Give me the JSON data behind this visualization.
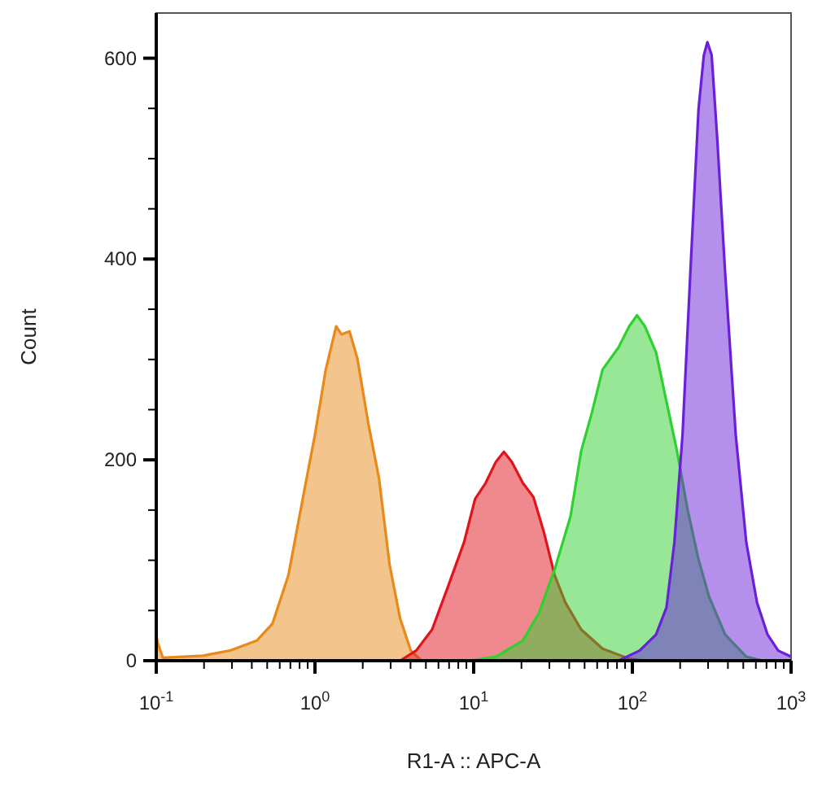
{
  "chart_data": {
    "type": "area",
    "xlabel": "R1-A :: APC-A",
    "ylabel": "Count",
    "log": "x",
    "grid": false,
    "xlim": [
      0.1,
      1000
    ],
    "ylim": [
      0,
      645
    ],
    "xticks": [
      {
        "value": 0.1,
        "label": "10$^{-1}$"
      },
      {
        "value": 0.2,
        "label": null
      },
      {
        "value": 0.3,
        "label": null
      },
      {
        "value": 0.4,
        "label": null
      },
      {
        "value": 0.5,
        "label": null
      },
      {
        "value": 0.6,
        "label": null
      },
      {
        "value": 0.7,
        "label": null
      },
      {
        "value": 0.8,
        "label": null
      },
      {
        "value": 0.9,
        "label": null
      },
      {
        "value": 1,
        "label": "10$^{0}$"
      },
      {
        "value": 2,
        "label": null
      },
      {
        "value": 3,
        "label": null
      },
      {
        "value": 4,
        "label": null
      },
      {
        "value": 5,
        "label": null
      },
      {
        "value": 6,
        "label": null
      },
      {
        "value": 7,
        "label": null
      },
      {
        "value": 8,
        "label": null
      },
      {
        "value": 9,
        "label": null
      },
      {
        "value": 10,
        "label": "10$^{1}$"
      },
      {
        "value": 20,
        "label": null
      },
      {
        "value": 30,
        "label": null
      },
      {
        "value": 40,
        "label": null
      },
      {
        "value": 50,
        "label": null
      },
      {
        "value": 60,
        "label": null
      },
      {
        "value": 70,
        "label": null
      },
      {
        "value": 80,
        "label": null
      },
      {
        "value": 90,
        "label": null
      },
      {
        "value": 100,
        "label": "10$^{2}$"
      },
      {
        "value": 200,
        "label": null
      },
      {
        "value": 300,
        "label": null
      },
      {
        "value": 400,
        "label": null
      },
      {
        "value": 500,
        "label": null
      },
      {
        "value": 600,
        "label": null
      },
      {
        "value": 700,
        "label": null
      },
      {
        "value": 800,
        "label": null
      },
      {
        "value": 900,
        "label": null
      },
      {
        "value": 1000,
        "label": "10$^{3}$"
      }
    ],
    "yticks": [
      0,
      {
        "value": 50,
        "label": null
      },
      {
        "value": 100,
        "label": null
      },
      {
        "value": 150,
        "label": null
      },
      200,
      {
        "value": 250,
        "label": null
      },
      {
        "value": 300,
        "label": null
      },
      {
        "value": 350,
        "label": null
      },
      400,
      {
        "value": 450,
        "label": null
      },
      {
        "value": 500,
        "label": null
      },
      {
        "value": 550,
        "label": null
      },
      600
    ],
    "series": [
      {
        "color": "#e8891a",
        "x": [
          0.1,
          0.102,
          0.11,
          0.197,
          0.29,
          0.43,
          0.54,
          0.68,
          0.86,
          1.0,
          1.17,
          1.36,
          1.47,
          1.65,
          1.85,
          2.17,
          2.53,
          2.95,
          3.44,
          4.02,
          4.69
        ],
        "values": [
          25,
          18,
          3,
          5,
          10,
          20,
          37,
          85,
          171,
          225,
          290,
          333,
          325,
          328,
          301,
          236,
          182,
          96,
          42,
          10,
          0
        ]
      },
      {
        "color": "#e0141e",
        "x": [
          3.44,
          4.34,
          5.47,
          6.9,
          8.7,
          10.2,
          11.9,
          13.8,
          15.5,
          17.4,
          20.4,
          23.8,
          27.7,
          32.4,
          37.8,
          47.6,
          64.9,
          95.5,
          120
        ],
        "values": [
          0,
          10,
          31,
          74,
          118,
          161,
          177,
          198,
          208,
          198,
          177,
          163,
          128,
          85,
          58,
          31,
          12,
          2,
          0
        ]
      },
      {
        "color": "#30d030",
        "x": [
          9.4,
          13.8,
          20.4,
          25.7,
          32.4,
          40.8,
          47.6,
          55.6,
          64.9,
          81.8,
          95.5,
          107,
          120,
          141,
          164,
          191,
          223,
          261,
          304,
          384,
          522,
          659
        ],
        "values": [
          0,
          4,
          20,
          47,
          91,
          144,
          209,
          247,
          290,
          312,
          333,
          344,
          333,
          307,
          258,
          209,
          150,
          101,
          64,
          26,
          4,
          0
        ]
      },
      {
        "color": "#6a1fd8",
        "x": [
          81.8,
          111,
          141,
          164,
          184,
          207,
          232,
          261,
          282,
          297,
          316,
          342,
          384,
          448,
          522,
          610,
          711,
          830,
          1000
        ],
        "values": [
          0,
          10,
          26,
          53,
          118,
          225,
          387,
          549,
          603,
          616,
          603,
          522,
          387,
          225,
          118,
          58,
          26,
          10,
          4
        ]
      }
    ]
  }
}
